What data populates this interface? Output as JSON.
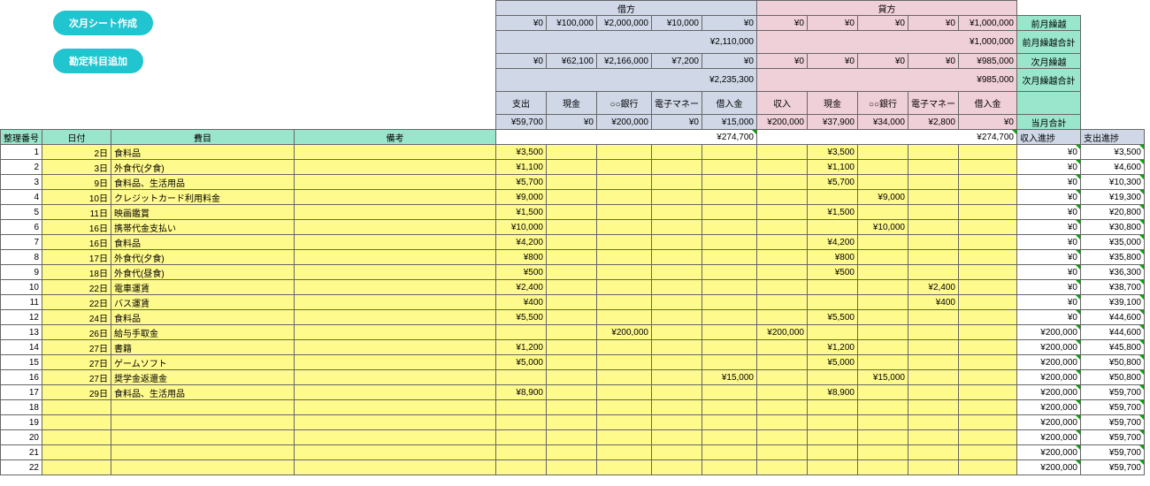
{
  "buttons": {
    "create": "次月シート作成",
    "add": "勘定科目追加"
  },
  "top_labels": {
    "kari": "借方",
    "kashi": "貸方"
  },
  "summary": {
    "row1_d": [
      "¥0",
      "¥100,000",
      "¥2,000,000",
      "¥10,000",
      "¥0"
    ],
    "row1_c": [
      "¥0",
      "¥0",
      "¥0",
      "¥0",
      "¥1,000,000"
    ],
    "row1_lbl": "前月繰越",
    "row2_d_total": "¥2,110,000",
    "row2_c_total": "¥1,000,000",
    "row2_lbl": "前月繰越合計",
    "row3_d": [
      "¥0",
      "¥62,100",
      "¥2,166,000",
      "¥7,200",
      "¥0"
    ],
    "row3_c": [
      "¥0",
      "¥0",
      "¥0",
      "¥0",
      "¥985,000"
    ],
    "row3_lbl": "次月繰越",
    "row4_d_total": "¥2,235,300",
    "row4_c_total": "¥985,000",
    "row4_lbl": "次月繰越合計",
    "hdr_d": [
      "支出",
      "現金",
      "○○銀行",
      "電子マネー",
      "借入金"
    ],
    "hdr_c": [
      "収入",
      "現金",
      "○○銀行",
      "電子マネー",
      "借入金"
    ],
    "hdr_lbl": "",
    "row6_d": [
      "¥59,700",
      "¥0",
      "¥200,000",
      "¥0",
      "¥15,000"
    ],
    "row6_c": [
      "¥200,000",
      "¥37,900",
      "¥34,000",
      "¥2,800",
      "¥0"
    ],
    "row6_lbl": "当月合計",
    "row7_d_total": "¥274,700",
    "row7_c_total": "¥274,700",
    "row7_in": "収入進捗",
    "row7_out": "支出進捗"
  },
  "cols": [
    "整理番号",
    "日付",
    "費目",
    "備考"
  ],
  "entry_rows": [
    {
      "n": "1",
      "d": "2日",
      "i": "食料品",
      "m": "",
      "v": {
        "0": "¥3,500",
        "6": "¥3,500"
      },
      "in": "¥0",
      "out": "¥3,500"
    },
    {
      "n": "2",
      "d": "3日",
      "i": "外食代(夕食)",
      "m": "",
      "v": {
        "0": "¥1,100",
        "6": "¥1,100"
      },
      "in": "¥0",
      "out": "¥4,600"
    },
    {
      "n": "3",
      "d": "9日",
      "i": "食料品、生活用品",
      "m": "",
      "v": {
        "0": "¥5,700",
        "6": "¥5,700"
      },
      "in": "¥0",
      "out": "¥10,300"
    },
    {
      "n": "4",
      "d": "10日",
      "i": "クレジットカード利用料金",
      "m": "",
      "v": {
        "0": "¥9,000",
        "7": "¥9,000"
      },
      "in": "¥0",
      "out": "¥19,300"
    },
    {
      "n": "5",
      "d": "11日",
      "i": "映画鑑賞",
      "m": "",
      "v": {
        "0": "¥1,500",
        "6": "¥1,500"
      },
      "in": "¥0",
      "out": "¥20,800"
    },
    {
      "n": "6",
      "d": "16日",
      "i": "携帯代金支払い",
      "m": "",
      "v": {
        "0": "¥10,000",
        "7": "¥10,000"
      },
      "in": "¥0",
      "out": "¥30,800"
    },
    {
      "n": "7",
      "d": "16日",
      "i": "食料品",
      "m": "",
      "v": {
        "0": "¥4,200",
        "6": "¥4,200"
      },
      "in": "¥0",
      "out": "¥35,000"
    },
    {
      "n": "8",
      "d": "17日",
      "i": "外食代(夕食)",
      "m": "",
      "v": {
        "0": "¥800",
        "6": "¥800"
      },
      "in": "¥0",
      "out": "¥35,800"
    },
    {
      "n": "9",
      "d": "18日",
      "i": "外食代(昼食)",
      "m": "",
      "v": {
        "0": "¥500",
        "6": "¥500"
      },
      "in": "¥0",
      "out": "¥36,300"
    },
    {
      "n": "10",
      "d": "22日",
      "i": "電車運賃",
      "m": "",
      "v": {
        "0": "¥2,400",
        "8": "¥2,400"
      },
      "in": "¥0",
      "out": "¥38,700"
    },
    {
      "n": "11",
      "d": "22日",
      "i": "バス運賃",
      "m": "",
      "v": {
        "0": "¥400",
        "8": "¥400"
      },
      "in": "¥0",
      "out": "¥39,100"
    },
    {
      "n": "12",
      "d": "24日",
      "i": "食料品",
      "m": "",
      "v": {
        "0": "¥5,500",
        "6": "¥5,500"
      },
      "in": "¥0",
      "out": "¥44,600"
    },
    {
      "n": "13",
      "d": "26日",
      "i": "給与手取金",
      "m": "",
      "v": {
        "2": "¥200,000",
        "5": "¥200,000"
      },
      "in": "¥200,000",
      "out": "¥44,600"
    },
    {
      "n": "14",
      "d": "27日",
      "i": "書籍",
      "m": "",
      "v": {
        "0": "¥1,200",
        "6": "¥1,200"
      },
      "in": "¥200,000",
      "out": "¥45,800"
    },
    {
      "n": "15",
      "d": "27日",
      "i": "ゲームソフト",
      "m": "",
      "v": {
        "0": "¥5,000",
        "6": "¥5,000"
      },
      "in": "¥200,000",
      "out": "¥50,800"
    },
    {
      "n": "16",
      "d": "27日",
      "i": "奨学金返還金",
      "m": "",
      "v": {
        "4": "¥15,000",
        "7": "¥15,000"
      },
      "in": "¥200,000",
      "out": "¥50,800"
    },
    {
      "n": "17",
      "d": "29日",
      "i": "食料品、生活用品",
      "m": "",
      "v": {
        "0": "¥8,900",
        "6": "¥8,900"
      },
      "in": "¥200,000",
      "out": "¥59,700"
    },
    {
      "n": "18",
      "d": "",
      "i": "",
      "m": "",
      "v": {},
      "in": "¥200,000",
      "out": "¥59,700"
    },
    {
      "n": "19",
      "d": "",
      "i": "",
      "m": "",
      "v": {},
      "in": "¥200,000",
      "out": "¥59,700"
    },
    {
      "n": "20",
      "d": "",
      "i": "",
      "m": "",
      "v": {},
      "in": "¥200,000",
      "out": "¥59,700"
    },
    {
      "n": "21",
      "d": "",
      "i": "",
      "m": "",
      "v": {},
      "in": "¥200,000",
      "out": "¥59,700"
    },
    {
      "n": "22",
      "d": "",
      "i": "",
      "m": "",
      "v": {},
      "in": "¥200,000",
      "out": "¥59,700"
    }
  ]
}
